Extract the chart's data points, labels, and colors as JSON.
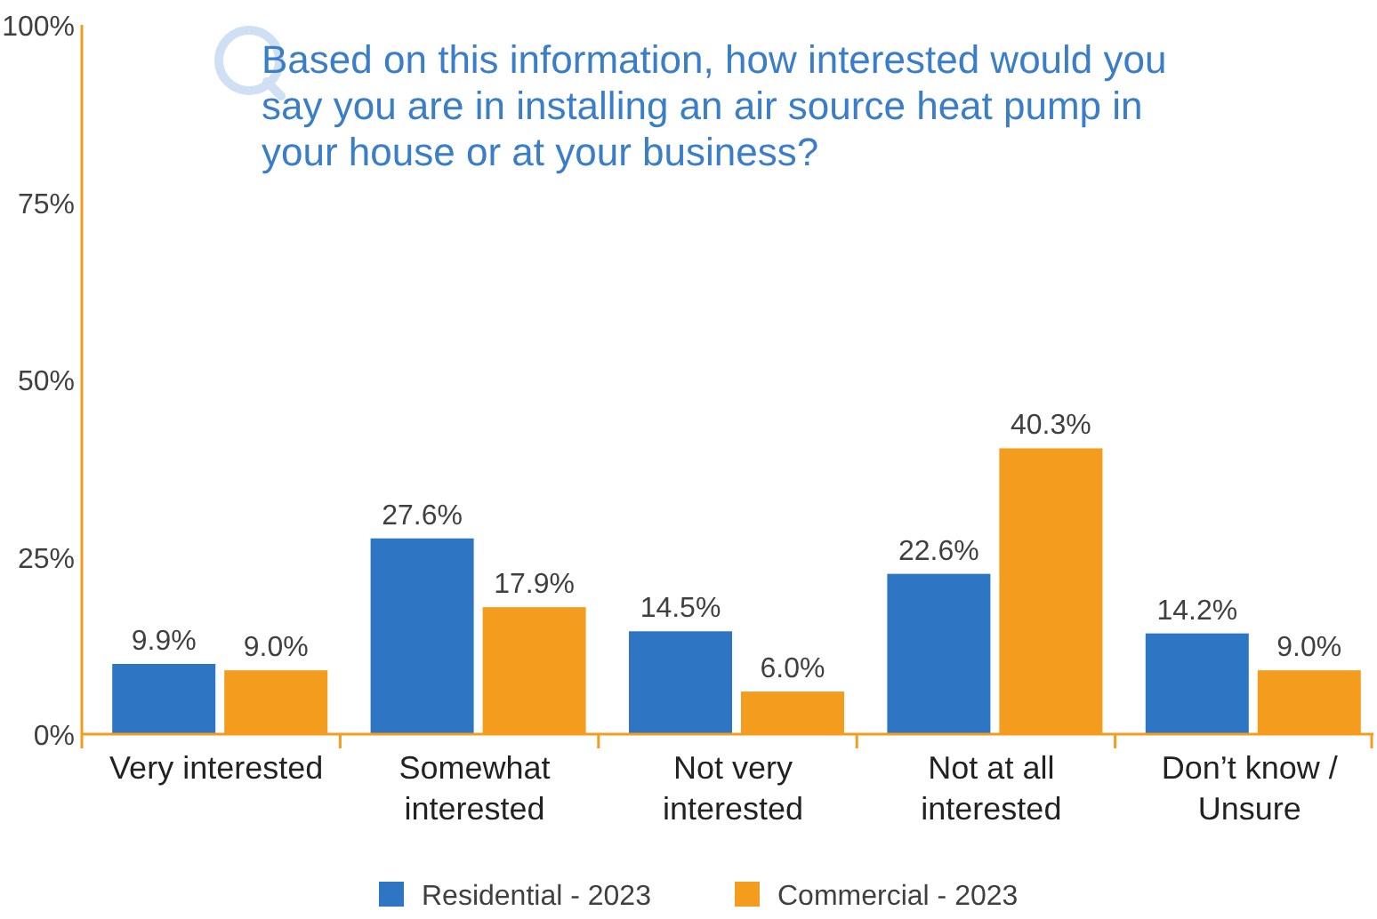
{
  "chart_data": {
    "type": "bar",
    "title": "Based on this information, how interested would you say you are in installing an air source heat pump in your house or at your business?",
    "categories": [
      "Very interested",
      "Somewhat interested",
      "Not very interested",
      "Not at all interested",
      "Don’t know / Unsure"
    ],
    "series": [
      {
        "name": "Residential - 2023",
        "color": "#2e75c4",
        "values": [
          9.9,
          27.6,
          14.5,
          22.6,
          14.2
        ],
        "value_labels": [
          "9.9%",
          "27.6%",
          "14.5%",
          "22.6%",
          "14.2%"
        ]
      },
      {
        "name": "Commercial - 2023",
        "color": "#f39c1e",
        "values": [
          9.0,
          17.9,
          6.0,
          40.3,
          9.0
        ],
        "value_labels": [
          "9.0%",
          "17.9%",
          "6.0%",
          "40.3%",
          "9.0%"
        ]
      }
    ],
    "ylim": [
      0,
      100
    ],
    "yticks": [
      {
        "value": 0,
        "label": "0%"
      },
      {
        "value": 25,
        "label": "25%"
      },
      {
        "value": 50,
        "label": "50%"
      },
      {
        "value": 75,
        "label": "75%"
      },
      {
        "value": 100,
        "label": "100%"
      }
    ],
    "legend": "bottom",
    "grid": false
  }
}
